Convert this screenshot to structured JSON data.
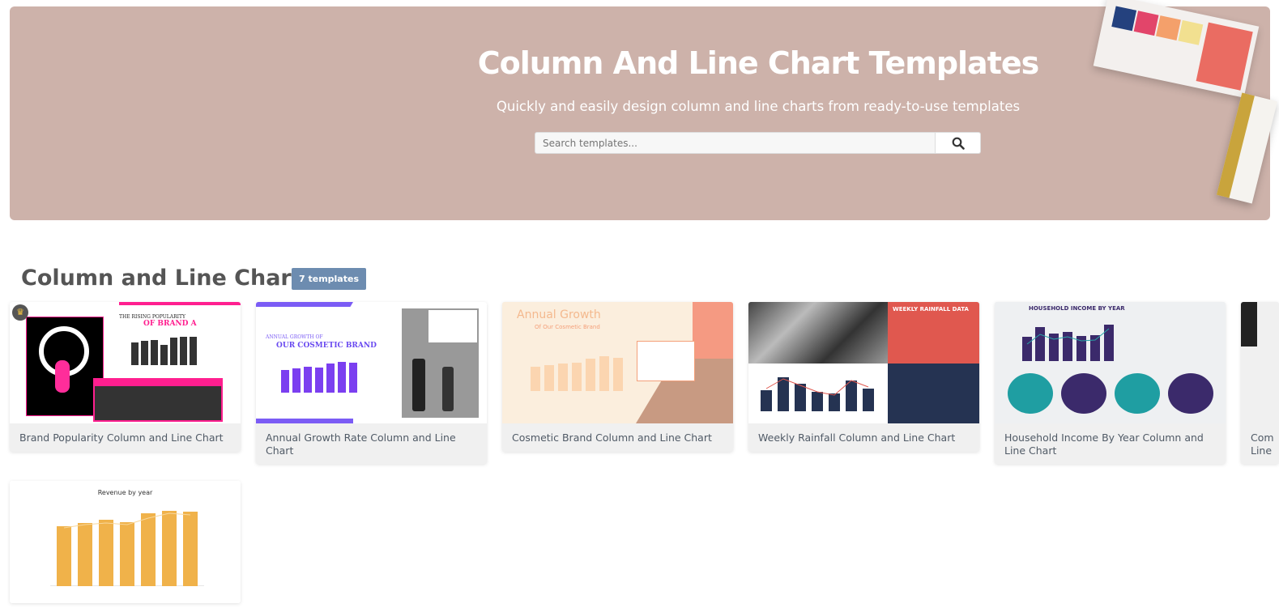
{
  "hero": {
    "title": "Column And Line Chart Templates",
    "subtitle": "Quickly and easily design column and line charts from ready-to-use templates",
    "search_placeholder": "Search templates...",
    "search_icon": "search-icon"
  },
  "section": {
    "title": "Column and Line Charts",
    "count_badge": "7 templates"
  },
  "cards": [
    {
      "title": "Brand Popularity Column and Line Chart",
      "premium": true,
      "thumb_heading": "THE RISING POPULARITY",
      "thumb_sub": "OF BRAND A",
      "accent": "#ff1f8f"
    },
    {
      "title": "Annual Growth Rate Column and Line Chart",
      "thumb_heading": "ANNUAL GROWTH OF",
      "thumb_sub": "OUR COSMETIC BRAND",
      "accent": "#7b4df0"
    },
    {
      "title": "Cosmetic Brand Column and Line Chart",
      "thumb_heading": "Annual Growth",
      "thumb_sub": "Of Our Cosmetic Brand",
      "accent": "#f7cfa0"
    },
    {
      "title": "Weekly Rainfall Column and Line Chart",
      "thumb_heading": "WEEKLY RAINFALL DATA",
      "accent": "#e0584f"
    },
    {
      "title": "Household Income By Year Column and Line Chart",
      "thumb_heading": "HOUSEHOLD INCOME BY YEAR",
      "accent": "#3b2a6b"
    },
    {
      "title": "Com Line"
    },
    {
      "title": "",
      "thumb_heading": "Revenue by year",
      "accent": "#f0b24a"
    }
  ]
}
